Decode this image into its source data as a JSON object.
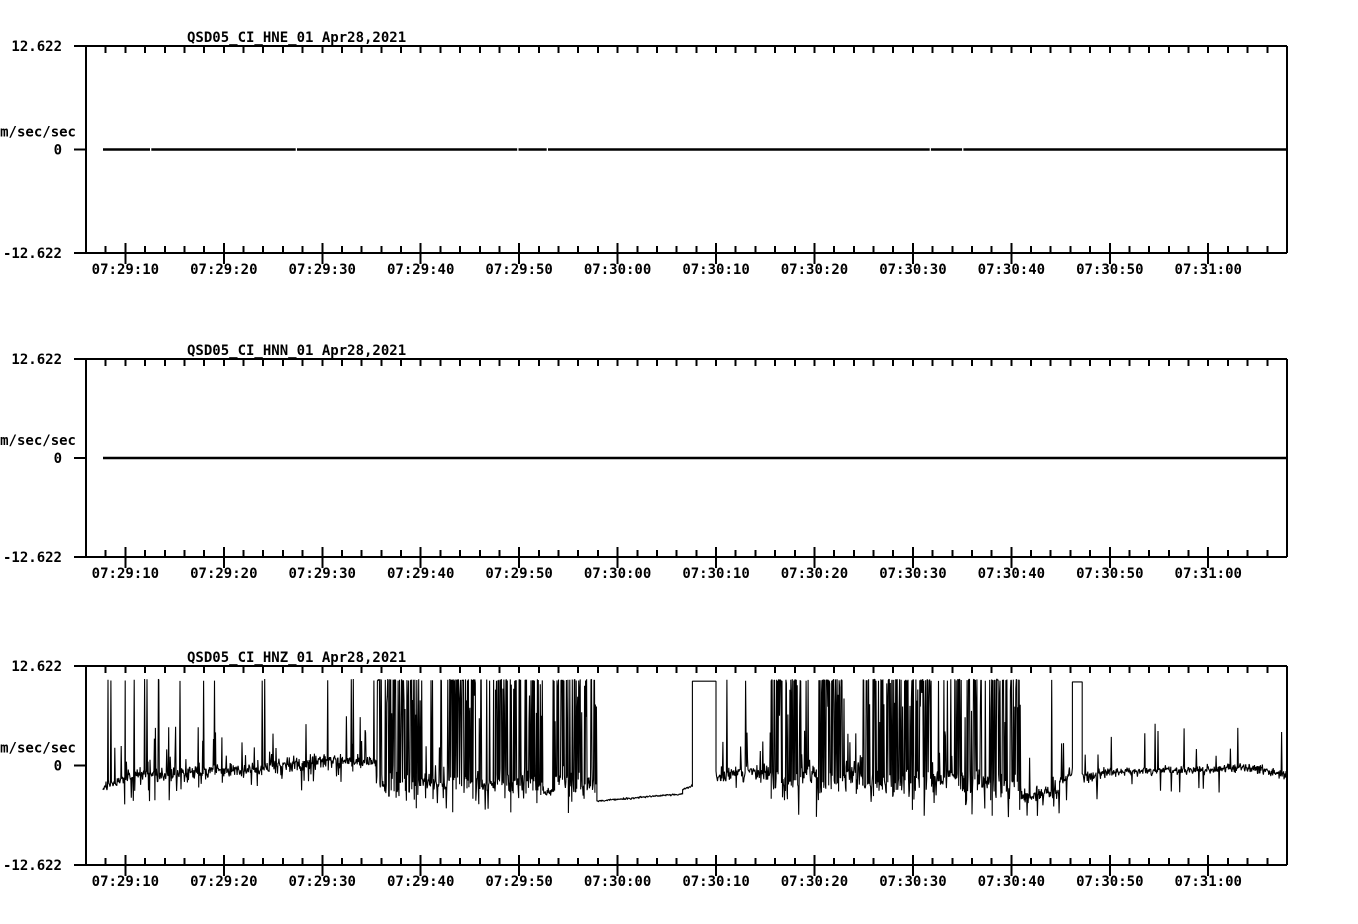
{
  "page": {
    "background": "#ffffff",
    "trace_color": "#000000"
  },
  "chart_data": {
    "type": "line",
    "kind": "seismogram-strip-chart",
    "date": "Apr28,2021",
    "ylabel": "cm/sec/sec",
    "ylim": [
      -12.622,
      12.622
    ],
    "ytick_labels": [
      "12.622",
      "0",
      "-12.622"
    ],
    "grid": false,
    "legend": "none",
    "x_axis": {
      "duration_sec": 122,
      "minor_tick_step_sec": 2,
      "major_ticks": [
        {
          "t": 4,
          "label": "07:29:10"
        },
        {
          "t": 14,
          "label": "07:29:20"
        },
        {
          "t": 24,
          "label": "07:29:30"
        },
        {
          "t": 34,
          "label": "07:29:40"
        },
        {
          "t": 44,
          "label": "07:29:50"
        },
        {
          "t": 54,
          "label": "07:30:00"
        },
        {
          "t": 64,
          "label": "07:30:10"
        },
        {
          "t": 74,
          "label": "07:30:20"
        },
        {
          "t": 84,
          "label": "07:30:30"
        },
        {
          "t": 94,
          "label": "07:30:40"
        },
        {
          "t": 104,
          "label": "07:30:50"
        },
        {
          "t": 114,
          "label": "07:31:00"
        }
      ]
    },
    "panels": [
      {
        "id": "HNE",
        "title": "QSD05_CI_HNE_01",
        "date": "Apr28,2021",
        "signal": {
          "type": "flat",
          "value": 0,
          "t_start": 1.73,
          "t_end": 122,
          "gaps": [
            6.5,
            21.3,
            43.8,
            46.8,
            85.7,
            89.0
          ]
        }
      },
      {
        "id": "HNN",
        "title": "QSD05_CI_HNN_01",
        "date": "Apr28,2021",
        "signal": {
          "type": "flat",
          "value": 0,
          "t_start": 1.73,
          "t_end": 122,
          "gaps": []
        }
      },
      {
        "id": "HNZ",
        "title": "QSD05_CI_HNZ_01",
        "date": "Apr28,2021",
        "signal": {
          "type": "segments",
          "clip_level": 10.85,
          "t_start": 1.73,
          "t_end": 122,
          "segments": [
            {
              "t0": 1.73,
              "t1": 4.0,
              "type": "noisy",
              "base": -2.8,
              "end": -1.6,
              "noise": 0.5,
              "hi": 0.05,
              "mid": 0.05,
              "dip": 0.05
            },
            {
              "t0": 4.0,
              "t1": 10.0,
              "type": "noisy",
              "base": -1.4,
              "end": -0.9,
              "noise": 0.7,
              "hi": 0.045,
              "mid": 0.07,
              "dip": 0.05
            },
            {
              "t0": 10.0,
              "t1": 18.0,
              "type": "noisy",
              "base": -0.9,
              "end": -0.4,
              "noise": 0.7,
              "hi": 0.04,
              "mid": 0.06,
              "dip": 0.04
            },
            {
              "t0": 18.0,
              "t1": 26.0,
              "type": "noisy",
              "base": -0.3,
              "end": 0.9,
              "noise": 0.8,
              "hi": 0.025,
              "mid": 0.07,
              "dip": 0.03
            },
            {
              "t0": 26.0,
              "t1": 29.5,
              "type": "noisy",
              "base": 0.6,
              "end": 0.3,
              "noise": 0.6,
              "hi": 0.02,
              "mid": 0.06,
              "dip": 0.02
            },
            {
              "t0": 29.5,
              "t1": 34.0,
              "type": "burst"
            },
            {
              "t0": 34.0,
              "t1": 36.9,
              "type": "noisy",
              "base": -2.3,
              "end": -2.3,
              "noise": 0.7,
              "hi": 0.12,
              "mid": 0.05,
              "dip": 0.06
            },
            {
              "t0": 36.9,
              "t1": 40.2,
              "type": "burst"
            },
            {
              "t0": 40.2,
              "t1": 41.6,
              "type": "noisy",
              "base": -2.6,
              "end": -2.6,
              "noise": 0.6,
              "hi": 0.15,
              "mid": 0.05,
              "dip": 0.05
            },
            {
              "t0": 41.6,
              "t1": 46.4,
              "type": "burst"
            },
            {
              "t0": 46.4,
              "t1": 47.6,
              "type": "noisy",
              "base": -3.3,
              "end": -3.3,
              "noise": 0.5,
              "hi": 0.12,
              "mid": 0.04,
              "dip": 0.04
            },
            {
              "t0": 47.6,
              "t1": 51.9,
              "type": "burst"
            },
            {
              "t0": 51.9,
              "t1": 60.6,
              "type": "quiet",
              "base": -4.5,
              "end": -3.6,
              "noise": 0.1
            },
            {
              "t0": 60.6,
              "t1": 61.6,
              "type": "quiet",
              "base": -3.0,
              "end": -2.6,
              "noise": 0.15
            },
            {
              "t0": 61.6,
              "t1": 64.0,
              "type": "plateau",
              "level": 10.7
            },
            {
              "t0": 64.0,
              "t1": 69.6,
              "type": "noisy",
              "base": -1.3,
              "end": -0.9,
              "noise": 0.8,
              "hi": 0.035,
              "mid": 0.08,
              "dip": 0.04
            },
            {
              "t0": 69.6,
              "t1": 72.6,
              "type": "burst"
            },
            {
              "t0": 72.6,
              "t1": 74.2,
              "type": "noisy",
              "base": -1.0,
              "end": -1.0,
              "noise": 1.0,
              "hi": 0.1,
              "mid": 0.1,
              "dip": 0.05
            },
            {
              "t0": 74.2,
              "t1": 77.2,
              "type": "burst"
            },
            {
              "t0": 77.2,
              "t1": 78.9,
              "type": "noisy",
              "base": -0.6,
              "end": -0.6,
              "noise": 1.0,
              "hi": 0.08,
              "mid": 0.1,
              "dip": 0.04
            },
            {
              "t0": 78.9,
              "t1": 85.9,
              "type": "burst"
            },
            {
              "t0": 85.9,
              "t1": 88.4,
              "type": "noisy",
              "base": -1.6,
              "end": -1.6,
              "noise": 0.9,
              "hi": 0.1,
              "mid": 0.08,
              "dip": 0.05
            },
            {
              "t0": 88.4,
              "t1": 91.2,
              "type": "burst"
            },
            {
              "t0": 91.2,
              "t1": 91.9,
              "type": "noisy",
              "base": -2.0,
              "end": -2.0,
              "noise": 0.8,
              "hi": 0.1,
              "mid": 0.06,
              "dip": 0.05
            },
            {
              "t0": 91.9,
              "t1": 95.0,
              "type": "burst"
            },
            {
              "t0": 95.0,
              "t1": 98.9,
              "type": "noisy",
              "base": -3.9,
              "end": -3.3,
              "noise": 0.7,
              "hi": 0.01,
              "mid": 0.05,
              "dip": 0.04
            },
            {
              "t0": 98.9,
              "t1": 100.2,
              "type": "noisy",
              "base": -2.0,
              "end": -0.8,
              "noise": 0.7,
              "hi": 0,
              "mid": 0.12,
              "dip": 0.02
            },
            {
              "t0": 100.2,
              "t1": 101.2,
              "type": "plateau",
              "level": 10.6
            },
            {
              "t0": 101.2,
              "t1": 104.0,
              "type": "noisy",
              "base": -1.5,
              "end": -0.9,
              "noise": 0.6,
              "hi": 0,
              "mid": 0.06,
              "dip": 0.03
            },
            {
              "t0": 104.0,
              "t1": 119.0,
              "type": "noisy",
              "base": -0.8,
              "end": -0.3,
              "noise": 0.45,
              "hi": 0,
              "mid": 0.03,
              "dip": 0.03
            },
            {
              "t0": 119.0,
              "t1": 122.0,
              "type": "noisy",
              "base": -0.4,
              "end": -1.3,
              "noise": 0.5,
              "hi": 0,
              "mid": 0.02,
              "dip": 0.03
            }
          ]
        }
      }
    ]
  }
}
